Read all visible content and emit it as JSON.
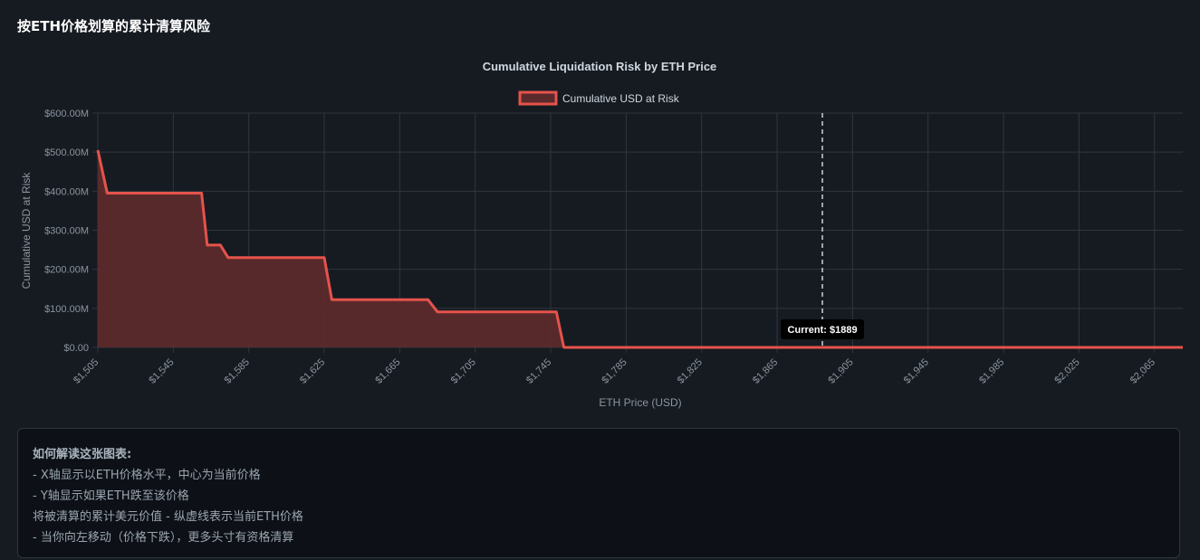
{
  "page": {
    "title": "按ETH价格划算的累计清算风险"
  },
  "chart_data": {
    "type": "area",
    "title": "Cumulative Liquidation Risk by ETH Price",
    "xlabel": "ETH Price (USD)",
    "ylabel": "Cumulative USD at Risk",
    "legend": {
      "label": "Cumulative USD at Risk",
      "position": "top-center"
    },
    "series_color": "#e5534b",
    "fill_color": "#5c2a2c",
    "xlim": [
      1505,
      2080
    ],
    "ylim": [
      0,
      600
    ],
    "x_ticks": [
      1505,
      1545,
      1585,
      1625,
      1665,
      1705,
      1745,
      1785,
      1825,
      1865,
      1905,
      1945,
      1985,
      2025,
      2065
    ],
    "x_tick_labels": [
      "$1,505",
      "$1,545",
      "$1,585",
      "$1,625",
      "$1,665",
      "$1,705",
      "$1,745",
      "$1,785",
      "$1,825",
      "$1,865",
      "$1,905",
      "$1,945",
      "$1,985",
      "$2,025",
      "$2,065"
    ],
    "y_ticks": [
      0,
      100,
      200,
      300,
      400,
      500,
      600
    ],
    "y_tick_labels": [
      "$0.00",
      "$100.00M",
      "$200.00M",
      "$300.00M",
      "$400.00M",
      "$500.00M",
      "$600.00M"
    ],
    "grid": true,
    "series": [
      {
        "name": "Cumulative USD at Risk",
        "points": [
          [
            1505,
            505
          ],
          [
            1510,
            395
          ],
          [
            1560,
            395
          ],
          [
            1563,
            262
          ],
          [
            1570,
            262
          ],
          [
            1574,
            230
          ],
          [
            1625,
            230
          ],
          [
            1629,
            122
          ],
          [
            1680,
            122
          ],
          [
            1685,
            91
          ],
          [
            1748,
            91
          ],
          [
            1752,
            0
          ],
          [
            2080,
            0
          ]
        ]
      }
    ],
    "current_price": {
      "value": 1889,
      "label": "Current: $1889"
    }
  },
  "info": {
    "title": "如何解读这张图表:",
    "lines": [
      "- X轴显示以ETH价格水平，中心为当前价格",
      "- Y轴显示如果ETH跌至该价格",
      "将被清算的累计美元价值 - 纵虚线表示当前ETH价格",
      "- 当你向左移动（价格下跌），更多头寸有资格清算"
    ]
  }
}
